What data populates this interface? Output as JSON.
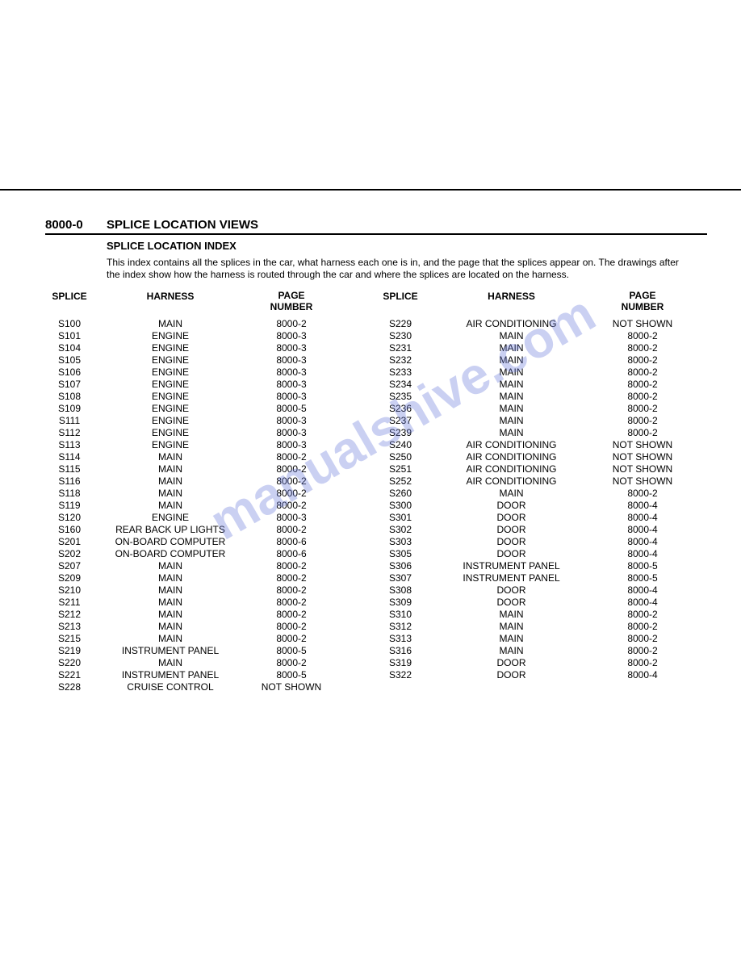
{
  "section_number": "8000-0",
  "section_title": "SPLICE LOCATION VIEWS",
  "sub_title": "SPLICE LOCATION INDEX",
  "intro": "This index contains all the splices in the car, what harness each one is in, and the page that the splices appear on. The drawings after the index show how the harness is routed through the car and where the splices are located on the harness.",
  "watermark": "manualshive.com",
  "headers": {
    "splice": "SPLICE",
    "harness": "HARNESS",
    "page": "PAGE",
    "number": "NUMBER"
  },
  "left": [
    {
      "s": "S100",
      "h": "MAIN",
      "p": "8000-2"
    },
    {
      "s": "S101",
      "h": "ENGINE",
      "p": "8000-3"
    },
    {
      "s": "S104",
      "h": "ENGINE",
      "p": "8000-3"
    },
    {
      "s": "S105",
      "h": "ENGINE",
      "p": "8000-3"
    },
    {
      "s": "S106",
      "h": "ENGINE",
      "p": "8000-3"
    },
    {
      "s": "S107",
      "h": "ENGINE",
      "p": "8000-3"
    },
    {
      "s": "S108",
      "h": "ENGINE",
      "p": "8000-3"
    },
    {
      "s": "S109",
      "h": "ENGINE",
      "p": "8000-5"
    },
    {
      "s": "S111",
      "h": "ENGINE",
      "p": "8000-3"
    },
    {
      "s": "S112",
      "h": "ENGINE",
      "p": "8000-3"
    },
    {
      "s": "S113",
      "h": "ENGINE",
      "p": "8000-3"
    },
    {
      "s": "S114",
      "h": "MAIN",
      "p": "8000-2"
    },
    {
      "s": "S115",
      "h": "MAIN",
      "p": "8000-2"
    },
    {
      "s": "S116",
      "h": "MAIN",
      "p": "8000-2"
    },
    {
      "s": "S118",
      "h": "MAIN",
      "p": "8000-2"
    },
    {
      "s": "S119",
      "h": "MAIN",
      "p": "8000-2"
    },
    {
      "s": "S120",
      "h": "ENGINE",
      "p": "8000-3"
    },
    {
      "s": "S160",
      "h": "REAR BACK UP LIGHTS",
      "p": "8000-2"
    },
    {
      "s": "S201",
      "h": "ON-BOARD COMPUTER",
      "p": "8000-6"
    },
    {
      "s": "S202",
      "h": "ON-BOARD COMPUTER",
      "p": "8000-6"
    },
    {
      "s": "S207",
      "h": "MAIN",
      "p": "8000-2"
    },
    {
      "s": "S209",
      "h": "MAIN",
      "p": "8000-2"
    },
    {
      "s": "S210",
      "h": "MAIN",
      "p": "8000-2"
    },
    {
      "s": "S211",
      "h": "MAIN",
      "p": "8000-2"
    },
    {
      "s": "S212",
      "h": "MAIN",
      "p": "8000-2"
    },
    {
      "s": "S213",
      "h": "MAIN",
      "p": "8000-2"
    },
    {
      "s": "S215",
      "h": "MAIN",
      "p": "8000-2"
    },
    {
      "s": "S219",
      "h": "INSTRUMENT PANEL",
      "p": "8000-5"
    },
    {
      "s": "S220",
      "h": "MAIN",
      "p": "8000-2"
    },
    {
      "s": "S221",
      "h": "INSTRUMENT PANEL",
      "p": "8000-5"
    },
    {
      "s": "S228",
      "h": "CRUISE CONTROL",
      "p": "NOT SHOWN"
    }
  ],
  "right": [
    {
      "s": "S229",
      "h": "AIR CONDITIONING",
      "p": "NOT SHOWN"
    },
    {
      "s": "S230",
      "h": "MAIN",
      "p": "8000-2"
    },
    {
      "s": "S231",
      "h": "MAIN",
      "p": "8000-2"
    },
    {
      "s": "S232",
      "h": "MAIN",
      "p": "8000-2"
    },
    {
      "s": "S233",
      "h": "MAIN",
      "p": "8000-2"
    },
    {
      "s": "S234",
      "h": "MAIN",
      "p": "8000-2"
    },
    {
      "s": "S235",
      "h": "MAIN",
      "p": "8000-2"
    },
    {
      "s": "S236",
      "h": "MAIN",
      "p": "8000-2"
    },
    {
      "s": "S237",
      "h": "MAIN",
      "p": "8000-2"
    },
    {
      "s": "S239",
      "h": "MAIN",
      "p": "8000-2"
    },
    {
      "s": "S240",
      "h": "AIR CONDITIONING",
      "p": "NOT SHOWN"
    },
    {
      "s": "S250",
      "h": "AIR CONDITIONING",
      "p": "NOT SHOWN"
    },
    {
      "s": "S251",
      "h": "AIR CONDITIONING",
      "p": "NOT SHOWN"
    },
    {
      "s": "S252",
      "h": "AIR CONDITIONING",
      "p": "NOT SHOWN"
    },
    {
      "s": "S260",
      "h": "MAIN",
      "p": "8000-2"
    },
    {
      "s": "S300",
      "h": "DOOR",
      "p": "8000-4"
    },
    {
      "s": "S301",
      "h": "DOOR",
      "p": "8000-4"
    },
    {
      "s": "S302",
      "h": "DOOR",
      "p": "8000-4"
    },
    {
      "s": "S303",
      "h": "DOOR",
      "p": "8000-4"
    },
    {
      "s": "S305",
      "h": "DOOR",
      "p": "8000-4"
    },
    {
      "s": "S306",
      "h": "INSTRUMENT PANEL",
      "p": "8000-5"
    },
    {
      "s": "S307",
      "h": "INSTRUMENT PANEL",
      "p": "8000-5"
    },
    {
      "s": "S308",
      "h": "DOOR",
      "p": "8000-4"
    },
    {
      "s": "S309",
      "h": "DOOR",
      "p": "8000-4"
    },
    {
      "s": "S310",
      "h": "MAIN",
      "p": "8000-2"
    },
    {
      "s": "S312",
      "h": "MAIN",
      "p": "8000-2"
    },
    {
      "s": "S313",
      "h": "MAIN",
      "p": "8000-2"
    },
    {
      "s": "S316",
      "h": "MAIN",
      "p": "8000-2"
    },
    {
      "s": "S319",
      "h": "DOOR",
      "p": "8000-2"
    },
    {
      "s": "S322",
      "h": "DOOR",
      "p": "8000-4"
    }
  ],
  "colors": {
    "text": "#000000",
    "background": "#ffffff",
    "watermark": "#6b7bdb"
  }
}
